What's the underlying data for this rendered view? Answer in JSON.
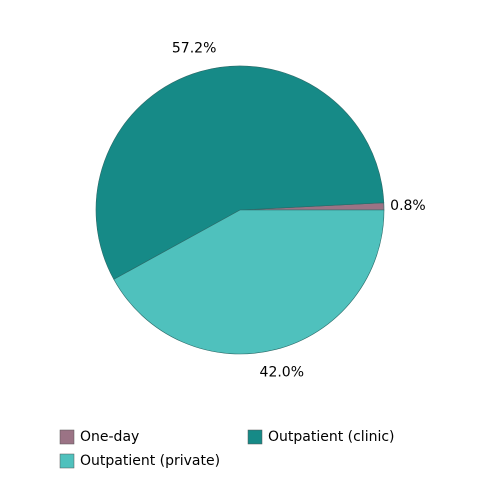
{
  "chart_data": {
    "type": "pie",
    "categories": [
      "One-day",
      "Outpatient (clinic)",
      "Outpatient (private)"
    ],
    "values": [
      0.8,
      57.2,
      42.0
    ],
    "value_labels": [
      "0.8%",
      "57.2%",
      "42.0%"
    ],
    "colors": [
      "#9b7385",
      "#168a87",
      "#4fc1bd"
    ],
    "legend": "bottom"
  }
}
